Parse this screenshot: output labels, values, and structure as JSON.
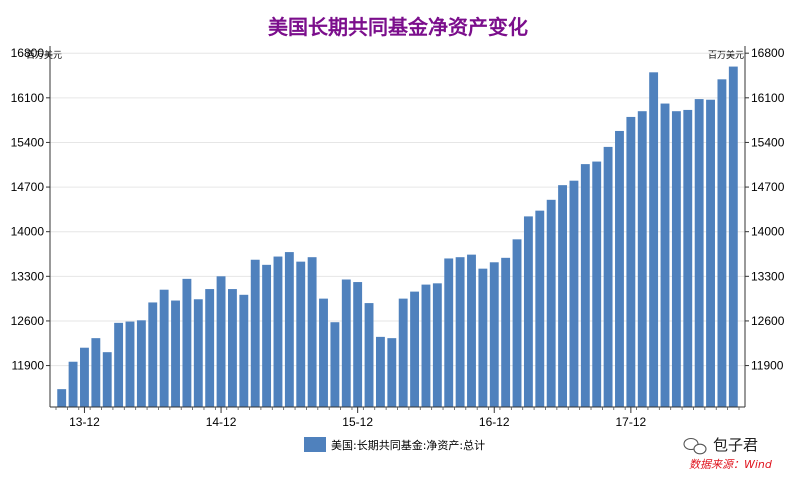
{
  "chart_data": {
    "type": "bar",
    "title": "美国长期共同基金净资产变化",
    "unit_left": "百万美元",
    "unit_right": "百万美元",
    "ylim": [
      11250,
      16850
    ],
    "yticks": [
      11900,
      12600,
      13300,
      14000,
      14700,
      15400,
      16100,
      16800
    ],
    "x_tick_labels": [
      {
        "label": "13-12",
        "index": 2
      },
      {
        "label": "14-12",
        "index": 14
      },
      {
        "label": "15-12",
        "index": 26
      },
      {
        "label": "16-12",
        "index": 38
      },
      {
        "label": "17-12",
        "index": 50
      }
    ],
    "legend_position": "bottom-center",
    "grid": true,
    "series": [
      {
        "name": "美国:长期共同基金:净资产:总计",
        "color": "#4f81bd",
        "values": [
          11530,
          11960,
          12180,
          12330,
          12110,
          12570,
          12590,
          12610,
          12890,
          13090,
          12920,
          13260,
          12940,
          13100,
          13300,
          13100,
          13010,
          13560,
          13480,
          13610,
          13680,
          13530,
          13600,
          12950,
          12580,
          13250,
          13210,
          12880,
          12350,
          12330,
          12950,
          13060,
          13170,
          13190,
          13580,
          13600,
          13640,
          13420,
          13520,
          13590,
          13880,
          14240,
          14330,
          14500,
          14730,
          14800,
          15060,
          15100,
          15330,
          15580,
          15800,
          15890,
          16500,
          16010,
          15890,
          15910,
          16080,
          16070,
          16390,
          16590
        ]
      }
    ]
  },
  "watermark": {
    "text": "包子君"
  },
  "source": {
    "text": "数据来源：Wind"
  }
}
